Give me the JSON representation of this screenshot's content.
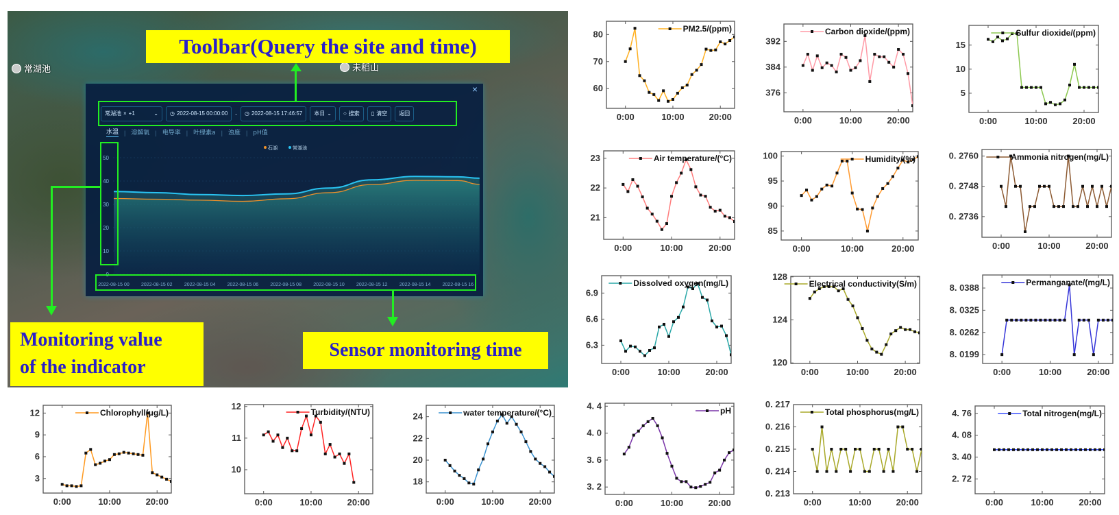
{
  "map": {
    "labels": [
      {
        "text": "常湖池",
        "icon": "poi-icon"
      },
      {
        "text": "未稻山",
        "icon": "poi-icon"
      }
    ]
  },
  "panel": {
    "close_label": "×",
    "toolbar": {
      "site_select": {
        "value": "常湖池",
        "tag_close": "×",
        "more": "+1",
        "chevron": "⌄"
      },
      "start_time": "2022-08-15 00:00:00",
      "separator": "-",
      "end_time": "2022-08-15 17:46:57",
      "range_select": {
        "value": "本日",
        "chevron": "⌄"
      },
      "search_label": "搜索",
      "clear_label": "清空",
      "back_label": "返回"
    },
    "tabs": [
      {
        "label": "水温",
        "active": true
      },
      {
        "label": "溶解氧"
      },
      {
        "label": "电导率"
      },
      {
        "label": "叶绿素a"
      },
      {
        "label": "浊度"
      },
      {
        "label": "pH值"
      }
    ]
  },
  "annotations": {
    "toolbar": "Toolbar(Query the site and time)",
    "value_line1": "Monitoring value",
    "value_line2": "of the indicator",
    "time": "Sensor monitoring time",
    "color_box": "#22ee22",
    "color_label_bg": "#ffff00",
    "color_label_text": "#2a20c8"
  },
  "ui_chart": {
    "type": "area",
    "legend": [
      {
        "name": "石湖",
        "color": "#f0922a"
      },
      {
        "name": "常湖池",
        "color": "#29c3f2"
      }
    ],
    "yticks": [
      0,
      10,
      20,
      30,
      40,
      50
    ],
    "xticks": [
      "2022-08-15 00",
      "2022-08-15 02",
      "2022-08-15 04",
      "2022-08-15 06",
      "2022-08-15 08",
      "2022-08-15 10",
      "2022-08-15 12",
      "2022-08-15 14",
      "2022-08-15 16"
    ],
    "x_hours": [
      0,
      2,
      4,
      6,
      8,
      10,
      12,
      14,
      16,
      17
    ],
    "series": [
      {
        "name": "石湖",
        "values": [
          32.5,
          32.2,
          31.8,
          31.3,
          32.4,
          35.0,
          38.5,
          40.3,
          40.2,
          38.6
        ]
      },
      {
        "name": "常湖池",
        "values": [
          35.5,
          35.0,
          34.2,
          33.8,
          34.5,
          37.0,
          40.5,
          42.0,
          41.8,
          41.2
        ]
      }
    ]
  },
  "chart_data": [
    {
      "type": "line",
      "legend": "PM2.5/(ppm)",
      "color": "#ffb020",
      "yticks": [
        60,
        70,
        80
      ],
      "ylim": [
        52.7,
        84.9
      ],
      "xlim": [
        -4,
        23
      ],
      "xticks": [
        "0:00",
        "10:00",
        "20:00"
      ],
      "xtick_values": [
        0,
        10,
        20
      ],
      "x": [
        0,
        1,
        2,
        3,
        4,
        5,
        6,
        7,
        8,
        9,
        10,
        11,
        12,
        13,
        14,
        15,
        16,
        17,
        18,
        19,
        20,
        21,
        22,
        23
      ],
      "values": [
        70,
        74.7,
        82.3,
        64.8,
        62.9,
        58.6,
        57.8,
        55.6,
        59.2,
        55.3,
        56,
        58.3,
        60.3,
        61.3,
        65.2,
        66.8,
        68.9,
        74.6,
        74.1,
        74.3,
        77.3,
        76.5,
        77.8,
        79.1
      ]
    },
    {
      "type": "line",
      "legend": "Carbon dioxide/(ppm)",
      "color": "#ff9aa6",
      "yticks": [
        376,
        384,
        392
      ],
      "ylim": [
        370.1,
        397.4
      ],
      "xlim": [
        -4,
        23
      ],
      "xticks": [
        "0:00",
        "10:00",
        "20:00"
      ],
      "xtick_values": [
        0,
        10,
        20
      ],
      "x": [
        0,
        1,
        2,
        3,
        4,
        5,
        6,
        7,
        8,
        9,
        10,
        11,
        12,
        13,
        14,
        15,
        16,
        17,
        18,
        19,
        20,
        21,
        22,
        23
      ],
      "values": [
        384.5,
        388,
        383,
        387.5,
        383.8,
        385.3,
        384.5,
        382.5,
        388,
        387,
        383,
        383.8,
        386,
        393.8,
        379.5,
        388,
        387.2,
        387.2,
        385.5,
        384,
        389.5,
        388,
        382,
        372
      ]
    },
    {
      "type": "line",
      "legend": "Sulfur dioxide/(ppm)",
      "color": "#8cc850",
      "yticks": [
        5,
        10,
        15
      ],
      "ylim": [
        1.0,
        19.1
      ],
      "xlim": [
        -4,
        23
      ],
      "xticks": [
        "0:00",
        "10:00",
        "20:00"
      ],
      "xtick_values": [
        0,
        10,
        20
      ],
      "x": [
        0,
        1,
        2,
        3,
        4,
        5,
        6,
        7,
        8,
        9,
        10,
        11,
        12,
        13,
        14,
        15,
        16,
        17,
        18,
        19,
        20,
        21,
        22,
        23
      ],
      "values": [
        16.2,
        15.7,
        16.7,
        15.9,
        16.3,
        17.4,
        17.4,
        6.2,
        6.2,
        6.2,
        6.2,
        6.2,
        2.8,
        3.1,
        2.6,
        2.8,
        3.6,
        6.7,
        11,
        6.2,
        6.2,
        6.2,
        6.2,
        6.2
      ]
    },
    {
      "type": "line",
      "legend": "Air temperature/(°C)",
      "color": "#ff7d7d",
      "yticks": [
        21,
        22,
        23
      ],
      "ylim": [
        20.27,
        23.25
      ],
      "xlim": [
        -4,
        23
      ],
      "xticks": [
        "0:00",
        "10:00",
        "20:00"
      ],
      "xtick_values": [
        0,
        10,
        20
      ],
      "x": [
        0,
        1,
        2,
        3,
        4,
        5,
        6,
        7,
        8,
        9,
        10,
        11,
        12,
        13,
        14,
        15,
        16,
        17,
        18,
        19,
        20,
        21,
        22,
        23
      ],
      "values": [
        22.12,
        21.88,
        22.28,
        22.06,
        21.7,
        21.32,
        21.12,
        20.88,
        20.6,
        20.8,
        21.72,
        22.18,
        22.5,
        22.95,
        22.62,
        22.04,
        21.76,
        21.72,
        21.35,
        21.22,
        21.25,
        21.05,
        21.0,
        20.87
      ]
    },
    {
      "type": "line",
      "legend": "Humidity/(%)",
      "color": "#ff9a30",
      "yticks": [
        85,
        90,
        95,
        100
      ],
      "ylim": [
        83.2,
        100.9
      ],
      "xlim": [
        -4,
        23
      ],
      "xticks": [
        "0:00",
        "10:00",
        "20:00"
      ],
      "xtick_values": [
        0,
        10,
        20
      ],
      "x": [
        0,
        1,
        2,
        3,
        4,
        5,
        6,
        7,
        8,
        9,
        10,
        11,
        12,
        13,
        14,
        15,
        16,
        17,
        18,
        19,
        20,
        21,
        22,
        23
      ],
      "values": [
        92.1,
        93.2,
        91.2,
        91.9,
        93.4,
        94.2,
        94,
        96.6,
        99,
        99,
        92.6,
        89.4,
        89.3,
        85,
        89.6,
        91.9,
        93.5,
        94.5,
        95.9,
        97.6,
        99.2,
        98.8,
        99.3,
        99.9
      ]
    },
    {
      "type": "line",
      "legend": "Ammonia nitrogen(mg/L)",
      "color": "#8c5a32",
      "yticks": [
        0.2736,
        0.2748,
        0.276
      ],
      "ytick_labels": [
        "0. 2736",
        "0. 2748",
        "0. 2760"
      ],
      "ylim": [
        0.27278,
        0.27626
      ],
      "xlim": [
        -4,
        23
      ],
      "xticks": [
        "0:00",
        "10:00",
        "20:00"
      ],
      "xtick_values": [
        0,
        10,
        20
      ],
      "x": [
        0,
        1,
        2,
        3,
        4,
        5,
        6,
        7,
        8,
        9,
        10,
        11,
        12,
        13,
        14,
        15,
        16,
        17,
        18,
        19,
        20,
        21,
        22,
        23
      ],
      "values": [
        0.2748,
        0.274,
        0.276,
        0.2748,
        0.2748,
        0.273,
        0.274,
        0.274,
        0.2748,
        0.2748,
        0.2748,
        0.274,
        0.274,
        0.274,
        0.276,
        0.274,
        0.274,
        0.2748,
        0.274,
        0.2748,
        0.274,
        0.2748,
        0.274,
        0.2748
      ]
    },
    {
      "type": "line",
      "legend": "Dissolved oxygen(mg/L)",
      "color": "#2aa8a8",
      "yticks": [
        6.3,
        6.6,
        6.9
      ],
      "ylim": [
        6.09,
        7.1
      ],
      "xlim": [
        -4,
        23
      ],
      "xticks": [
        "0:00",
        "10:00",
        "20:00"
      ],
      "xtick_values": [
        0,
        10,
        20
      ],
      "x": [
        0,
        1,
        2,
        3,
        4,
        5,
        6,
        7,
        8,
        9,
        10,
        11,
        12,
        13,
        14,
        15,
        16,
        17,
        18,
        19,
        20,
        21,
        22,
        23
      ],
      "values": [
        6.35,
        6.23,
        6.29,
        6.28,
        6.23,
        6.18,
        6.24,
        6.27,
        6.51,
        6.54,
        6.4,
        6.57,
        6.62,
        6.74,
        6.97,
        6.95,
        7.01,
        6.85,
        6.82,
        6.58,
        6.51,
        6.52,
        6.41,
        6.19
      ]
    },
    {
      "type": "line",
      "legend": "Electrical conductivity(S/m)",
      "color": "#a8a828",
      "yticks": [
        120,
        124,
        128
      ],
      "ylim": [
        119.95,
        128.05
      ],
      "xlim": [
        -4,
        23
      ],
      "xticks": [
        "0:00",
        "10:00",
        "20:00"
      ],
      "xtick_values": [
        0,
        10,
        20
      ],
      "x": [
        0,
        1,
        2,
        3,
        4,
        5,
        6,
        7,
        8,
        9,
        10,
        11,
        12,
        13,
        14,
        15,
        16,
        17,
        18,
        19,
        20,
        21,
        22,
        23
      ],
      "values": [
        126,
        126.6,
        126.9,
        127.1,
        127.1,
        127.1,
        126.7,
        126.9,
        125.9,
        125.3,
        124.2,
        123.2,
        122.1,
        121.3,
        121,
        120.8,
        121.7,
        122.7,
        123,
        123.3,
        123.1,
        123.1,
        122.9,
        122.8
      ]
    },
    {
      "type": "line",
      "legend": "Permanganate/(mg/L)",
      "color": "#3535d8",
      "yticks": [
        8.0199,
        8.0262,
        8.0325,
        8.0388
      ],
      "ytick_labels": [
        "8. 0199",
        "8. 0262",
        "8. 0325",
        "8. 0388"
      ],
      "ylim": [
        8.0174,
        8.0425
      ],
      "xlim": [
        -4,
        23
      ],
      "xticks": [
        "0:00",
        "10:00",
        "20:00"
      ],
      "xtick_values": [
        0,
        10,
        20
      ],
      "x": [
        0,
        1,
        2,
        3,
        4,
        5,
        6,
        7,
        8,
        9,
        10,
        11,
        12,
        13,
        14,
        15,
        16,
        17,
        18,
        19,
        20,
        21,
        22,
        23
      ],
      "values": [
        8.0199,
        8.0297,
        8.0297,
        8.0297,
        8.0297,
        8.0297,
        8.0297,
        8.0297,
        8.0297,
        8.0297,
        8.0297,
        8.0297,
        8.0297,
        8.0297,
        8.0397,
        8.0199,
        8.0297,
        8.0297,
        8.0297,
        8.0199,
        8.0297,
        8.0297,
        8.0297,
        8.0297
      ]
    },
    {
      "type": "line",
      "legend": "Chlorophyll(μg/L)",
      "color": "#ff9a20",
      "yticks": [
        3,
        6,
        9,
        12
      ],
      "ylim": [
        1.0,
        13.07
      ],
      "xlim": [
        -4,
        23
      ],
      "xticks": [
        "0:00",
        "10:00",
        "20:00"
      ],
      "xtick_values": [
        0,
        10,
        20
      ],
      "x": [
        0,
        1,
        2,
        3,
        4,
        5,
        6,
        7,
        8,
        9,
        10,
        11,
        12,
        13,
        14,
        15,
        16,
        17,
        18,
        19,
        20,
        21,
        22,
        23
      ],
      "values": [
        2.2,
        2.0,
        2.0,
        1.9,
        2.0,
        6.5,
        7.0,
        4.9,
        5.1,
        5.4,
        5.6,
        6.3,
        6.4,
        6.6,
        6.5,
        6.4,
        6.3,
        6.2,
        12.0,
        3.8,
        3.5,
        3.2,
        2.9,
        2.6
      ]
    },
    {
      "type": "line",
      "legend": "Turbidity/(NTU)",
      "color": "#ff2424",
      "yticks": [
        10,
        11,
        12
      ],
      "ylim": [
        9.24,
        12.06
      ],
      "xlim": [
        -4,
        23
      ],
      "xticks": [
        "0:00",
        "10:00",
        "20:00"
      ],
      "xtick_values": [
        0,
        10,
        20
      ],
      "x": [
        0,
        1,
        2,
        3,
        4,
        5,
        6,
        7,
        8,
        9,
        10,
        11,
        12,
        13,
        14,
        15,
        16,
        17,
        18,
        19
      ],
      "values": [
        11.1,
        11.2,
        10.9,
        11.1,
        10.7,
        11.0,
        10.6,
        10.6,
        11.3,
        11.7,
        11.1,
        11.7,
        11.5,
        10.5,
        10.8,
        10.4,
        10.5,
        10.2,
        10.5,
        9.6
      ]
    },
    {
      "type": "line",
      "legend": "water temperature/(°C)",
      "color": "#3a92d0",
      "yticks": [
        18,
        20,
        22,
        24
      ],
      "ylim": [
        16.97,
        25.05
      ],
      "xlim": [
        -4,
        23
      ],
      "xticks": [
        "0:00",
        "10:00",
        "20:00"
      ],
      "xtick_values": [
        0,
        10,
        20
      ],
      "x": [
        0,
        1,
        2,
        3,
        4,
        5,
        6,
        7,
        8,
        9,
        10,
        11,
        12,
        13,
        14,
        15,
        16,
        17,
        18,
        19,
        20,
        21,
        22,
        23
      ],
      "values": [
        20,
        19.5,
        19,
        18.6,
        18.3,
        17.9,
        17.8,
        19.1,
        20.1,
        21.5,
        22.6,
        23.6,
        24.2,
        23.4,
        24,
        23.3,
        22.6,
        21.7,
        20.8,
        20.1,
        19.7,
        19.4,
        18.9,
        18.5
      ]
    },
    {
      "type": "line",
      "legend": "pH",
      "color": "#7a35a8",
      "yticks": [
        3.2,
        3.6,
        4.0,
        4.4
      ],
      "ytick_labels": [
        "3. 2",
        "3. 6",
        "4. 0",
        "4. 4"
      ],
      "ylim": [
        3.09,
        4.444
      ],
      "xlim": [
        -4,
        23
      ],
      "xticks": [
        "0:00",
        "10:00",
        "20:00"
      ],
      "xtick_values": [
        0,
        10,
        20
      ],
      "x": [
        0,
        1,
        2,
        3,
        4,
        5,
        6,
        7,
        8,
        9,
        10,
        11,
        12,
        13,
        14,
        15,
        16,
        17,
        18,
        19,
        20,
        21,
        22,
        23
      ],
      "values": [
        3.69,
        3.79,
        3.97,
        4.03,
        4.11,
        4.17,
        4.22,
        4.11,
        3.93,
        3.7,
        3.51,
        3.33,
        3.28,
        3.28,
        3.2,
        3.19,
        3.21,
        3.24,
        3.27,
        3.41,
        3.45,
        3.6,
        3.71,
        3.75
      ]
    },
    {
      "type": "line",
      "legend": "Total phosphorus(mg/L)",
      "color": "#a8a828",
      "yticks": [
        0.213,
        0.214,
        0.215,
        0.216,
        0.217
      ],
      "ytick_labels": [
        "0. 213",
        "0. 214",
        "0. 215",
        "0. 216",
        "0. 217"
      ],
      "ylim": [
        0.213,
        0.217
      ],
      "xlim": [
        -4,
        23
      ],
      "xticks": [
        "0:00",
        "10:00",
        "20:00"
      ],
      "xtick_values": [
        0,
        10,
        20
      ],
      "x": [
        0,
        1,
        2,
        3,
        4,
        5,
        6,
        7,
        8,
        9,
        10,
        11,
        12,
        13,
        14,
        15,
        16,
        17,
        18,
        19,
        20,
        21,
        22,
        23
      ],
      "values": [
        0.215,
        0.214,
        0.216,
        0.214,
        0.215,
        0.214,
        0.215,
        0.215,
        0.214,
        0.215,
        0.215,
        0.214,
        0.214,
        0.215,
        0.215,
        0.214,
        0.215,
        0.214,
        0.216,
        0.216,
        0.215,
        0.215,
        0.214,
        0.215
      ]
    },
    {
      "type": "line",
      "legend": "Total nitrogen(mg/L)",
      "color": "#3a50ff",
      "yticks": [
        2.72,
        3.4,
        4.08,
        4.76
      ],
      "ytick_labels": [
        "2. 72",
        "3. 40",
        "4. 08",
        "4. 76"
      ],
      "ylim": [
        2.26,
        4.99
      ],
      "xlim": [
        -4,
        23
      ],
      "xticks": [
        "0:00",
        "10:00",
        "20:00"
      ],
      "xtick_values": [
        0,
        10,
        20
      ],
      "x": [
        0,
        1,
        2,
        3,
        4,
        5,
        6,
        7,
        8,
        9,
        10,
        11,
        12,
        13,
        14,
        15,
        16,
        17,
        18,
        19,
        20,
        21,
        22,
        23
      ],
      "values": [
        3.63,
        3.63,
        3.63,
        3.63,
        3.63,
        3.63,
        3.63,
        3.63,
        3.63,
        3.63,
        3.63,
        3.63,
        3.63,
        3.63,
        3.63,
        3.63,
        3.63,
        3.63,
        3.63,
        3.63,
        3.63,
        3.63,
        3.63,
        3.63
      ]
    }
  ]
}
